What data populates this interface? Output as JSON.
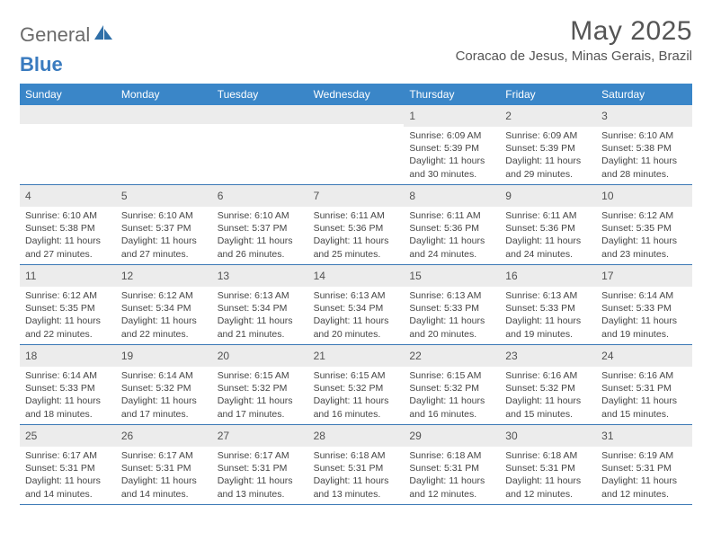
{
  "logo": {
    "text1": "General",
    "text2": "Blue"
  },
  "title": "May 2025",
  "location": "Coracao de Jesus, Minas Gerais, Brazil",
  "weekdays": [
    "Sunday",
    "Monday",
    "Tuesday",
    "Wednesday",
    "Thursday",
    "Friday",
    "Saturday"
  ],
  "colors": {
    "header_bg": "#3a86c8",
    "border": "#3a78b5",
    "daynum_bg": "#ececec",
    "text": "#454545",
    "title": "#555555"
  },
  "weeks": [
    [
      {
        "n": "",
        "sr": "",
        "ss": "",
        "d1": "",
        "d2": ""
      },
      {
        "n": "",
        "sr": "",
        "ss": "",
        "d1": "",
        "d2": ""
      },
      {
        "n": "",
        "sr": "",
        "ss": "",
        "d1": "",
        "d2": ""
      },
      {
        "n": "",
        "sr": "",
        "ss": "",
        "d1": "",
        "d2": ""
      },
      {
        "n": "1",
        "sr": "Sunrise: 6:09 AM",
        "ss": "Sunset: 5:39 PM",
        "d1": "Daylight: 11 hours",
        "d2": "and 30 minutes."
      },
      {
        "n": "2",
        "sr": "Sunrise: 6:09 AM",
        "ss": "Sunset: 5:39 PM",
        "d1": "Daylight: 11 hours",
        "d2": "and 29 minutes."
      },
      {
        "n": "3",
        "sr": "Sunrise: 6:10 AM",
        "ss": "Sunset: 5:38 PM",
        "d1": "Daylight: 11 hours",
        "d2": "and 28 minutes."
      }
    ],
    [
      {
        "n": "4",
        "sr": "Sunrise: 6:10 AM",
        "ss": "Sunset: 5:38 PM",
        "d1": "Daylight: 11 hours",
        "d2": "and 27 minutes."
      },
      {
        "n": "5",
        "sr": "Sunrise: 6:10 AM",
        "ss": "Sunset: 5:37 PM",
        "d1": "Daylight: 11 hours",
        "d2": "and 27 minutes."
      },
      {
        "n": "6",
        "sr": "Sunrise: 6:10 AM",
        "ss": "Sunset: 5:37 PM",
        "d1": "Daylight: 11 hours",
        "d2": "and 26 minutes."
      },
      {
        "n": "7",
        "sr": "Sunrise: 6:11 AM",
        "ss": "Sunset: 5:36 PM",
        "d1": "Daylight: 11 hours",
        "d2": "and 25 minutes."
      },
      {
        "n": "8",
        "sr": "Sunrise: 6:11 AM",
        "ss": "Sunset: 5:36 PM",
        "d1": "Daylight: 11 hours",
        "d2": "and 24 minutes."
      },
      {
        "n": "9",
        "sr": "Sunrise: 6:11 AM",
        "ss": "Sunset: 5:36 PM",
        "d1": "Daylight: 11 hours",
        "d2": "and 24 minutes."
      },
      {
        "n": "10",
        "sr": "Sunrise: 6:12 AM",
        "ss": "Sunset: 5:35 PM",
        "d1": "Daylight: 11 hours",
        "d2": "and 23 minutes."
      }
    ],
    [
      {
        "n": "11",
        "sr": "Sunrise: 6:12 AM",
        "ss": "Sunset: 5:35 PM",
        "d1": "Daylight: 11 hours",
        "d2": "and 22 minutes."
      },
      {
        "n": "12",
        "sr": "Sunrise: 6:12 AM",
        "ss": "Sunset: 5:34 PM",
        "d1": "Daylight: 11 hours",
        "d2": "and 22 minutes."
      },
      {
        "n": "13",
        "sr": "Sunrise: 6:13 AM",
        "ss": "Sunset: 5:34 PM",
        "d1": "Daylight: 11 hours",
        "d2": "and 21 minutes."
      },
      {
        "n": "14",
        "sr": "Sunrise: 6:13 AM",
        "ss": "Sunset: 5:34 PM",
        "d1": "Daylight: 11 hours",
        "d2": "and 20 minutes."
      },
      {
        "n": "15",
        "sr": "Sunrise: 6:13 AM",
        "ss": "Sunset: 5:33 PM",
        "d1": "Daylight: 11 hours",
        "d2": "and 20 minutes."
      },
      {
        "n": "16",
        "sr": "Sunrise: 6:13 AM",
        "ss": "Sunset: 5:33 PM",
        "d1": "Daylight: 11 hours",
        "d2": "and 19 minutes."
      },
      {
        "n": "17",
        "sr": "Sunrise: 6:14 AM",
        "ss": "Sunset: 5:33 PM",
        "d1": "Daylight: 11 hours",
        "d2": "and 19 minutes."
      }
    ],
    [
      {
        "n": "18",
        "sr": "Sunrise: 6:14 AM",
        "ss": "Sunset: 5:33 PM",
        "d1": "Daylight: 11 hours",
        "d2": "and 18 minutes."
      },
      {
        "n": "19",
        "sr": "Sunrise: 6:14 AM",
        "ss": "Sunset: 5:32 PM",
        "d1": "Daylight: 11 hours",
        "d2": "and 17 minutes."
      },
      {
        "n": "20",
        "sr": "Sunrise: 6:15 AM",
        "ss": "Sunset: 5:32 PM",
        "d1": "Daylight: 11 hours",
        "d2": "and 17 minutes."
      },
      {
        "n": "21",
        "sr": "Sunrise: 6:15 AM",
        "ss": "Sunset: 5:32 PM",
        "d1": "Daylight: 11 hours",
        "d2": "and 16 minutes."
      },
      {
        "n": "22",
        "sr": "Sunrise: 6:15 AM",
        "ss": "Sunset: 5:32 PM",
        "d1": "Daylight: 11 hours",
        "d2": "and 16 minutes."
      },
      {
        "n": "23",
        "sr": "Sunrise: 6:16 AM",
        "ss": "Sunset: 5:32 PM",
        "d1": "Daylight: 11 hours",
        "d2": "and 15 minutes."
      },
      {
        "n": "24",
        "sr": "Sunrise: 6:16 AM",
        "ss": "Sunset: 5:31 PM",
        "d1": "Daylight: 11 hours",
        "d2": "and 15 minutes."
      }
    ],
    [
      {
        "n": "25",
        "sr": "Sunrise: 6:17 AM",
        "ss": "Sunset: 5:31 PM",
        "d1": "Daylight: 11 hours",
        "d2": "and 14 minutes."
      },
      {
        "n": "26",
        "sr": "Sunrise: 6:17 AM",
        "ss": "Sunset: 5:31 PM",
        "d1": "Daylight: 11 hours",
        "d2": "and 14 minutes."
      },
      {
        "n": "27",
        "sr": "Sunrise: 6:17 AM",
        "ss": "Sunset: 5:31 PM",
        "d1": "Daylight: 11 hours",
        "d2": "and 13 minutes."
      },
      {
        "n": "28",
        "sr": "Sunrise: 6:18 AM",
        "ss": "Sunset: 5:31 PM",
        "d1": "Daylight: 11 hours",
        "d2": "and 13 minutes."
      },
      {
        "n": "29",
        "sr": "Sunrise: 6:18 AM",
        "ss": "Sunset: 5:31 PM",
        "d1": "Daylight: 11 hours",
        "d2": "and 12 minutes."
      },
      {
        "n": "30",
        "sr": "Sunrise: 6:18 AM",
        "ss": "Sunset: 5:31 PM",
        "d1": "Daylight: 11 hours",
        "d2": "and 12 minutes."
      },
      {
        "n": "31",
        "sr": "Sunrise: 6:19 AM",
        "ss": "Sunset: 5:31 PM",
        "d1": "Daylight: 11 hours",
        "d2": "and 12 minutes."
      }
    ]
  ]
}
